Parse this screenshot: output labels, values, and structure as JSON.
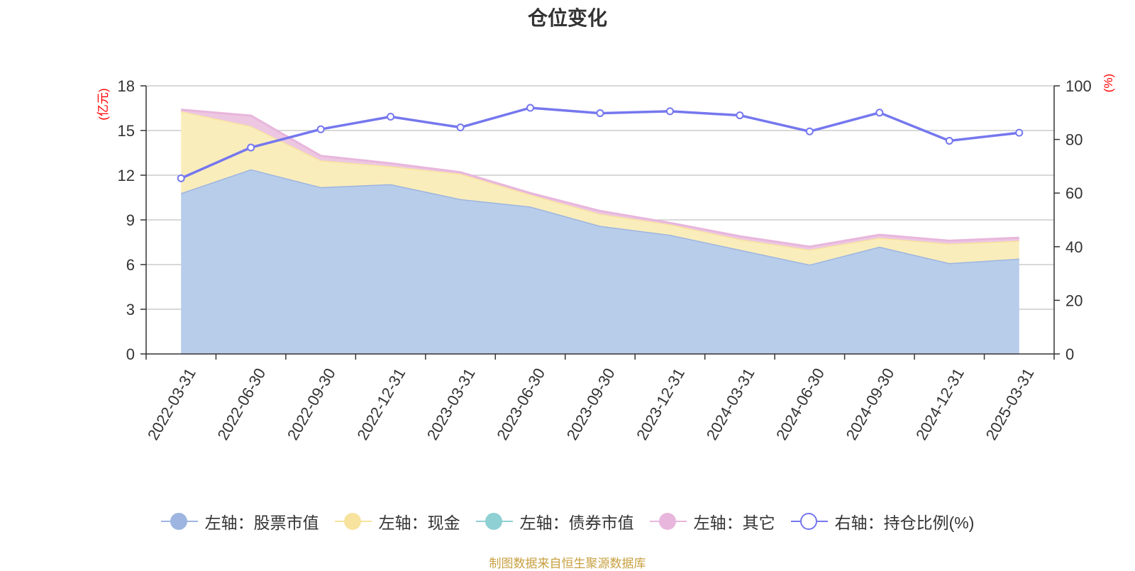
{
  "chart_data": {
    "type": "area",
    "title": "仓位变化",
    "left_axis_unit": "(亿元)",
    "right_axis_unit": "(%)",
    "left_ticks": [
      "0",
      "3",
      "6",
      "9",
      "12",
      "15",
      "18"
    ],
    "right_ticks": [
      "0",
      "20",
      "40",
      "60",
      "80",
      "100"
    ],
    "ylim_left": [
      0,
      18
    ],
    "ylim_right": [
      0,
      100
    ],
    "grid": true,
    "legend_position": "bottom",
    "x": [
      "2022-03-31",
      "2022-06-30",
      "2022-09-30",
      "2022-12-31",
      "2023-03-31",
      "2023-06-30",
      "2023-09-30",
      "2023-12-31",
      "2024-03-31",
      "2024-06-30",
      "2024-09-30",
      "2024-12-31",
      "2025-03-31"
    ],
    "series": [
      {
        "name": "左轴：股票市值",
        "axis": "left",
        "stack": true,
        "color": "#9db5e0",
        "fill": "#b8cdea",
        "values": [
          10.8,
          12.4,
          11.2,
          11.4,
          10.4,
          9.9,
          8.6,
          8.0,
          7.0,
          6.0,
          7.2,
          6.1,
          6.4
        ]
      },
      {
        "name": "左轴：现金",
        "axis": "left",
        "stack": true,
        "color": "#f7e39d",
        "fill": "#faedbc",
        "values": [
          5.5,
          2.9,
          1.8,
          1.2,
          1.7,
          0.8,
          0.8,
          0.7,
          0.7,
          1.0,
          0.6,
          1.3,
          1.2
        ]
      },
      {
        "name": "左轴：债券市值",
        "axis": "left",
        "stack": true,
        "color": "#8ed0d4",
        "fill": "#b5e3e6",
        "values": [
          0,
          0,
          0,
          0,
          0,
          0,
          0,
          0,
          0,
          0,
          0,
          0,
          0
        ]
      },
      {
        "name": "左轴：其它",
        "axis": "left",
        "stack": true,
        "color": "#e8b6dc",
        "fill": "#edc7e2",
        "values": [
          0.1,
          0.7,
          0.3,
          0.2,
          0.1,
          0.1,
          0.2,
          0.1,
          0.2,
          0.2,
          0.2,
          0.2,
          0.2
        ]
      },
      {
        "name": "右轴：持仓比例(%)",
        "axis": "right",
        "type": "line",
        "color": "#7577ee",
        "values": [
          65.5,
          77.0,
          83.8,
          88.5,
          84.5,
          91.8,
          89.8,
          90.5,
          89.0,
          83.0,
          90.0,
          79.5,
          82.5
        ]
      }
    ]
  },
  "legend": [
    {
      "label": "左轴：股票市值",
      "color": "#9db5e0",
      "hollow": false
    },
    {
      "label": "左轴：现金",
      "color": "#f7e39d",
      "hollow": false
    },
    {
      "label": "左轴：债券市值",
      "color": "#8ed0d4",
      "hollow": false
    },
    {
      "label": "左轴：其它",
      "color": "#e8b6dc",
      "hollow": false
    },
    {
      "label": "右轴：持仓比例(%)",
      "color": "#7577ee",
      "hollow": true
    }
  ],
  "source_text": "制图数据来自恒生聚源数据库"
}
